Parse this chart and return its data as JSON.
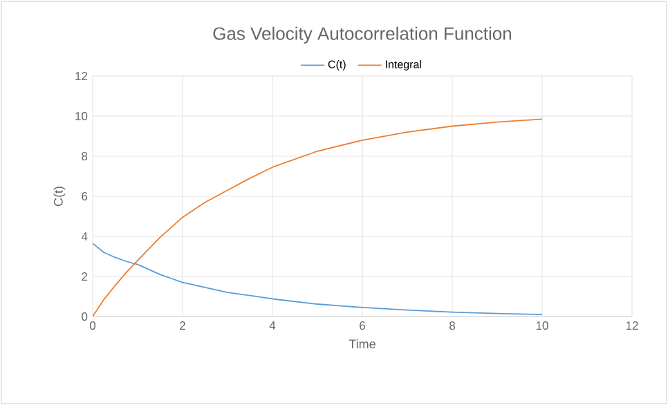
{
  "chart_data": {
    "type": "line",
    "title": "Gas Velocity Autocorrelation Function",
    "xlabel": "Time",
    "ylabel": "C(t)",
    "x": [
      0,
      0.25,
      0.5,
      0.75,
      1,
      1.5,
      2,
      2.5,
      3,
      3.5,
      4,
      5,
      6,
      7,
      8,
      9,
      10
    ],
    "series": [
      {
        "name": "C(t)",
        "color": "#5b9bd5",
        "values": [
          3.65,
          3.2,
          2.95,
          2.75,
          2.6,
          2.1,
          1.7,
          1.45,
          1.2,
          1.05,
          0.88,
          0.62,
          0.45,
          0.32,
          0.22,
          0.15,
          0.1
        ]
      },
      {
        "name": "Integral",
        "color": "#ed7d31",
        "values": [
          0,
          0.85,
          1.55,
          2.2,
          2.8,
          3.95,
          4.95,
          5.7,
          6.3,
          6.9,
          7.45,
          8.25,
          8.8,
          9.2,
          9.5,
          9.7,
          9.85
        ]
      }
    ],
    "xlim": [
      0,
      12
    ],
    "ylim": [
      0,
      12
    ],
    "xticks": [
      0,
      2,
      4,
      6,
      8,
      10,
      12
    ],
    "yticks": [
      0,
      2,
      4,
      6,
      8,
      10,
      12
    ],
    "grid": true,
    "legend": "top",
    "marker": "none",
    "line_style": "solid"
  }
}
